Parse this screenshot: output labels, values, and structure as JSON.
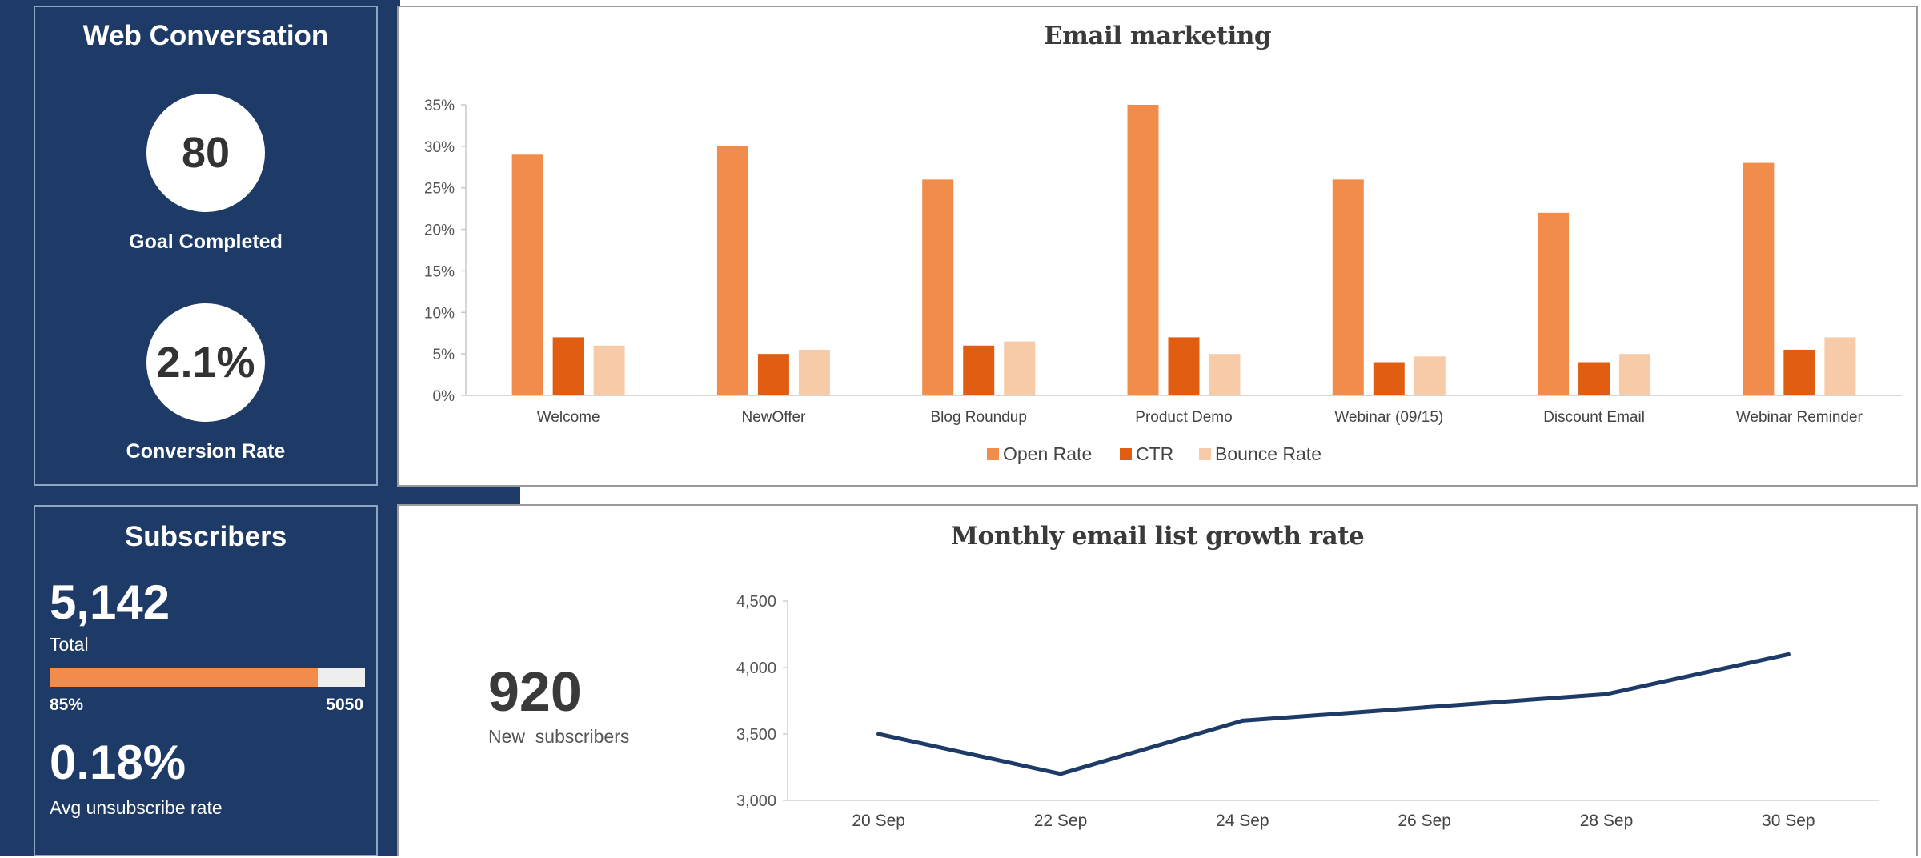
{
  "web_conversation": {
    "title": "Web Conversation",
    "goal_value": "80",
    "goal_label": "Goal Completed",
    "conversion_value": "2.1%",
    "conversion_label": "Conversion Rate"
  },
  "subscribers": {
    "title": "Subscribers",
    "total_value": "5,142",
    "total_label": "Total",
    "progress_percent_label": "85%",
    "progress_target_label": "5050",
    "progress_fraction": 0.85,
    "unsub_value": "0.18%",
    "unsub_label": "Avg unsubscribe rate"
  },
  "growth": {
    "new_value": "920",
    "new_label": "New  subscribers"
  },
  "colors": {
    "navy": "#1e3a66",
    "open_rate": "#f28c4b",
    "ctr": "#e05d12",
    "bounce_rate": "#f8cba8",
    "line": "#1e3a66",
    "progress_fill": "#f28c4b",
    "progress_track": "#eeeeee"
  },
  "chart_data": [
    {
      "type": "bar",
      "title": "Email marketing",
      "categories": [
        "Welcome",
        "NewOffer",
        "Blog Roundup",
        "Product Demo",
        "Webinar (09/15)",
        "Discount Email",
        "Webinar Reminder"
      ],
      "series": [
        {
          "name": "Open Rate",
          "values": [
            29,
            30,
            26,
            35,
            26,
            22,
            28
          ]
        },
        {
          "name": "CTR",
          "values": [
            7,
            5,
            6,
            7,
            4,
            4,
            5.5
          ]
        },
        {
          "name": "Bounce Rate",
          "values": [
            6,
            5.5,
            6.5,
            5,
            4.7,
            5,
            7
          ]
        }
      ],
      "yticks": [
        "0%",
        "5%",
        "10%",
        "15%",
        "20%",
        "25%",
        "30%",
        "35%"
      ],
      "ylim": [
        0,
        35
      ],
      "legend_position": "bottom",
      "grid": false
    },
    {
      "type": "line",
      "title": "Monthly email list growth rate",
      "x": [
        "20 Sep",
        "22 Sep",
        "24 Sep",
        "26 Sep",
        "28 Sep",
        "30 Sep"
      ],
      "series": [
        {
          "values": [
            3500,
            3200,
            3600,
            3700,
            3800,
            4100
          ]
        }
      ],
      "yticks": [
        "3,000",
        "3,500",
        "4,000",
        "4,500"
      ],
      "ylim": [
        3000,
        4500
      ],
      "grid": false
    }
  ]
}
